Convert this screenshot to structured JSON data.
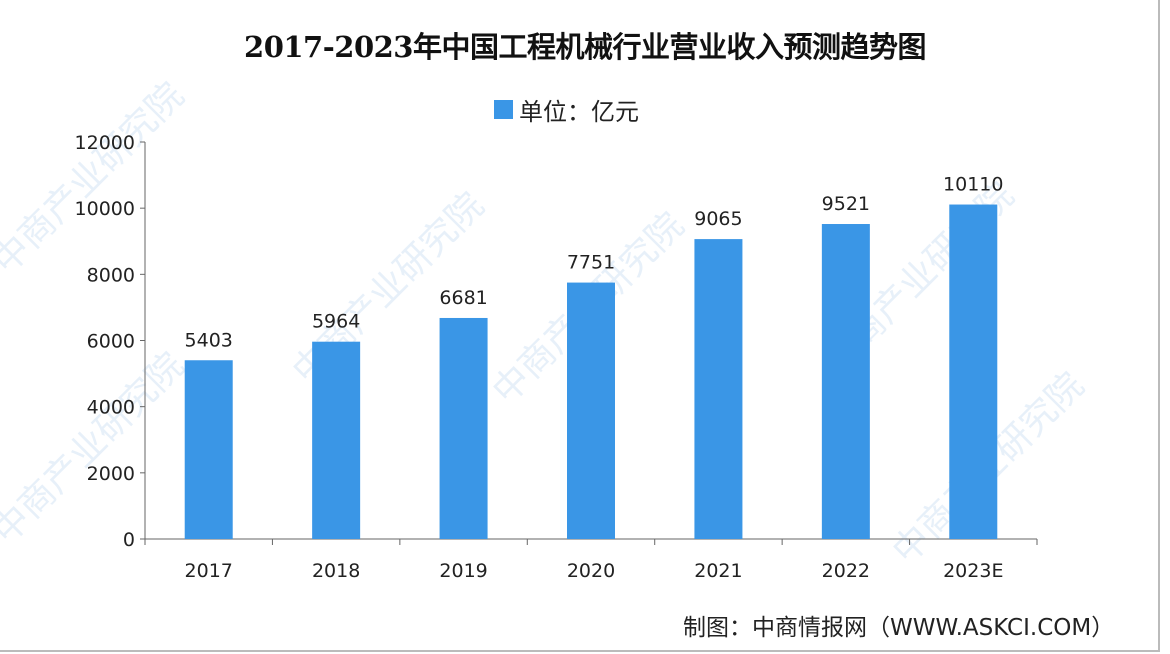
{
  "chart_data": {
    "type": "bar",
    "title": "2017-2023年中国工程机械行业营业收入预测趋势图",
    "legend": "单位：亿元",
    "legend_position": "top",
    "categories": [
      "2017",
      "2018",
      "2019",
      "2020",
      "2021",
      "2022",
      "2023E"
    ],
    "values": [
      5403,
      5964,
      6681,
      7751,
      9065,
      9521,
      10110
    ],
    "ylim": [
      0,
      12000
    ],
    "yticks": [
      "0",
      "2000",
      "4000",
      "6000",
      "8000",
      "10000",
      "12000"
    ],
    "grid": false,
    "bar_color": "#3a96e6",
    "source": "制图：中商情报网（WWW.ASKCI.COM）"
  },
  "watermark": "中商产业研究院"
}
